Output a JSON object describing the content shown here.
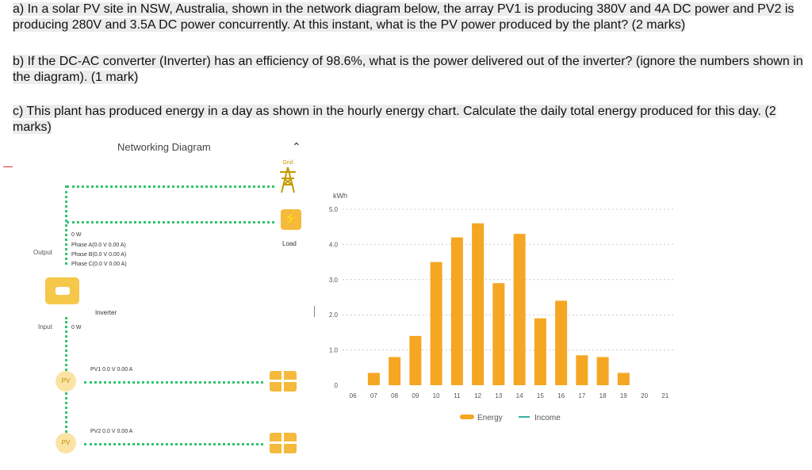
{
  "questions": {
    "a": "a) In a solar PV site in NSW, Australia, shown in the network diagram below, the array PV1 is producing 380V and 4A DC power and PV2 is producing 280V and 3.5A DC power concurrently. At this instant, what is the PV power produced by the plant? (2 marks)",
    "b": "b) If the DC-AC converter (Inverter) has an efficiency of 98.6%, what is the power delivered out of the inverter? (ignore the numbers shown in the diagram). (1 mark)",
    "c": "c) This plant has produced energy in a day as shown in the hourly energy chart. Calculate the daily total energy produced for this day. (2 marks)"
  },
  "network": {
    "title": "Networking Diagram",
    "grid_label": "Grid",
    "load_label": "Load",
    "output_label": "Output",
    "input_label": "Input",
    "inverter_label": "Inverter",
    "output_power": "0 W",
    "phase_a": "Phase A(0.0 V  0.00 A)",
    "phase_b": "Phase B(0.0 V  0.00 A)",
    "phase_c": "Phase C(0.0 V  0.00 A)",
    "input_power": "0 W",
    "pv1": "PV1  0.0 V   0.00 A",
    "pv2": "PV2  0.0 V   0.00 A",
    "icons": {
      "collapse": "chevron-up-icon",
      "grid": "power-tower-icon",
      "load": "lightning-icon",
      "inverter": "inverter-icon",
      "panel": "solar-panel-icon",
      "pv": "sun-icon"
    },
    "colors": {
      "line": "#32c36f",
      "accent": "#f5b93c"
    }
  },
  "chart_data": {
    "type": "bar",
    "unit_label": "kWh",
    "categories": [
      "06",
      "07",
      "08",
      "09",
      "10",
      "11",
      "12",
      "13",
      "14",
      "15",
      "16",
      "17",
      "18",
      "19",
      "20",
      "21"
    ],
    "series": [
      {
        "name": "Energy",
        "values": [
          0,
          0.35,
          0.8,
          1.4,
          3.5,
          4.2,
          4.6,
          2.9,
          4.3,
          1.9,
          2.4,
          0.85,
          0.8,
          0.35,
          0,
          0
        ]
      }
    ],
    "legend": [
      "Energy",
      "Income"
    ],
    "yticks": [
      "0",
      "1.0",
      "2.0",
      "3.0",
      "4.0",
      "5.0"
    ],
    "ylim": [
      0,
      5.0
    ],
    "grid": true,
    "legend_position": "bottom",
    "colors": {
      "bar": "#f5a623",
      "income": "#3ab0a2"
    }
  }
}
